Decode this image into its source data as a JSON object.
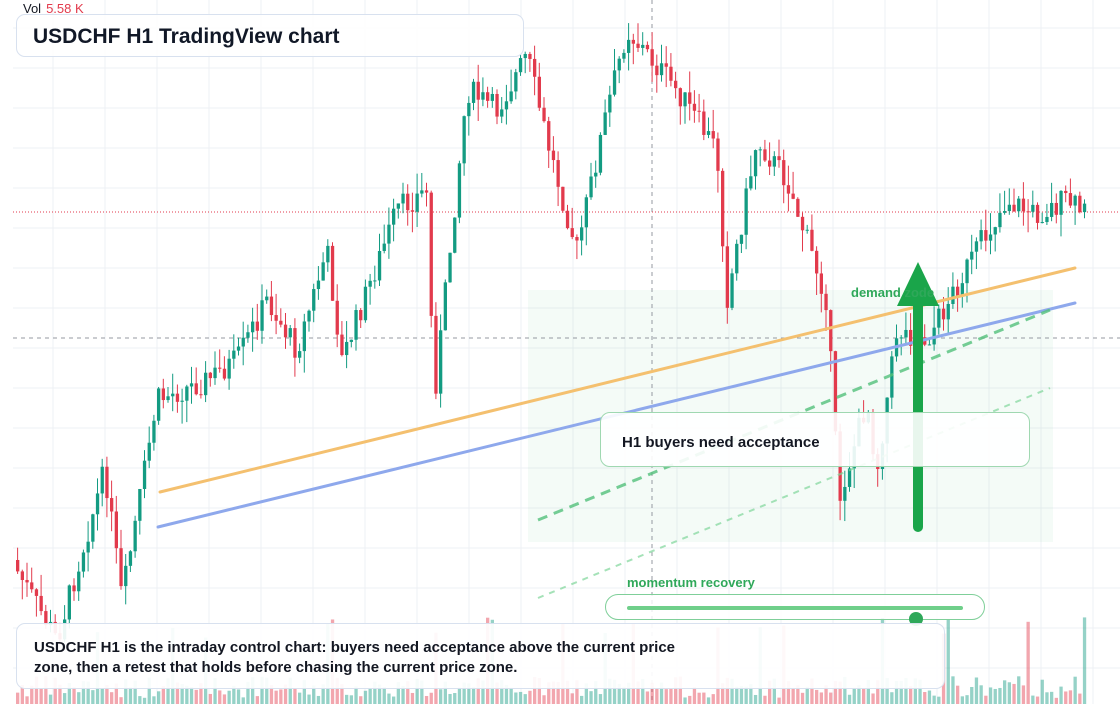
{
  "chart_data": {
    "type": "candlestick",
    "title": "USDCHF H1 TradingView chart",
    "symbol": "USDCHF",
    "timeframe": "H1",
    "grid": true,
    "volume": {
      "label": "Vol",
      "value": "5.58 K"
    },
    "colors": {
      "up": "#139b82",
      "down": "#e23a4c",
      "support_line": "#f4c06f",
      "trend_line": "#8ea8ec",
      "zone_line": "#52c07a",
      "arrow": "#1aa54a"
    },
    "annotations": {
      "demand_zone_label": "demand zode",
      "note_text": "H1 buyers need acceptance",
      "momentum_label": "momentum recovery",
      "momentum_level": 0.86
    },
    "caption": "USDCHF H1 is the intraday control chart: buyers need acceptance above the current price zone, then a retest that holds before chasing the current price zone."
  }
}
